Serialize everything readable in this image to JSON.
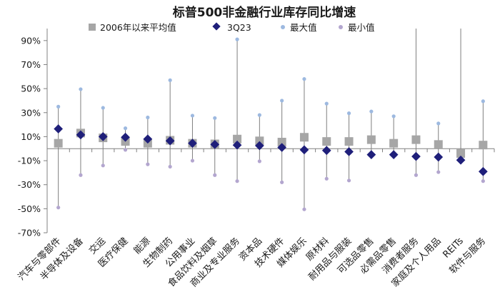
{
  "chart_data": {
    "type": "scatter",
    "title": "标普500非金融行业库存同比增速",
    "xlabel": "",
    "ylabel": "",
    "ylim": [
      -70,
      100
    ],
    "yticks": [
      -70,
      -50,
      -30,
      -10,
      10,
      30,
      50,
      70,
      90
    ],
    "ytick_labels": [
      "-70%",
      "-50%",
      "-30%",
      "-10%",
      "10%",
      "30%",
      "50%",
      "70%",
      "90%"
    ],
    "legend_position": "top",
    "categories": [
      "汽车与零部件",
      "半导体及设备",
      "交运",
      "医疗保健",
      "能源",
      "生物制药",
      "公用事业",
      "食品饮料及烟草",
      "商业及专业服务",
      "资本品",
      "技术硬件",
      "媒体娱乐",
      "原材料",
      "耐用品与服装",
      "可选品零售",
      "必需品零售",
      "消费者服务",
      "家庭及个人用品",
      "REITs",
      "软件与服务"
    ],
    "series": [
      {
        "name": "2006年以来平均值",
        "marker": "square",
        "color": "#a6a6a6",
        "values": [
          4.5,
          13,
          9,
          6,
          4.5,
          7,
          4.5,
          4,
          8,
          6.5,
          5.5,
          9.5,
          6,
          6,
          7.5,
          4.5,
          7.5,
          3.5,
          -4,
          3
        ]
      },
      {
        "name": "3Q23",
        "marker": "diamond",
        "color": "#1f1f7a",
        "values": [
          16.5,
          11.5,
          10,
          9.5,
          8,
          6.5,
          4.5,
          3.5,
          3,
          2.5,
          1,
          -1,
          -1.5,
          -2.5,
          -5,
          -5,
          -6.5,
          -7,
          -9.5,
          -19
        ]
      },
      {
        "name": "最大值",
        "marker": "circle",
        "color": "#9db9e0",
        "values": [
          35,
          49.5,
          34,
          17,
          26,
          57,
          27.5,
          25.5,
          91,
          28,
          40,
          58,
          37.5,
          29.5,
          31,
          27,
          100,
          21,
          100,
          39.5
        ]
      },
      {
        "name": "最小值",
        "marker": "circle",
        "color": "#b3a6cf",
        "values": [
          -49,
          -22,
          -14,
          -1,
          -13,
          -15,
          -10,
          -22,
          -27,
          -10.5,
          -28,
          -50.5,
          -25,
          -26.5,
          -3.5,
          -3.5,
          -22,
          -19.5,
          -5,
          -27
        ]
      }
    ]
  }
}
